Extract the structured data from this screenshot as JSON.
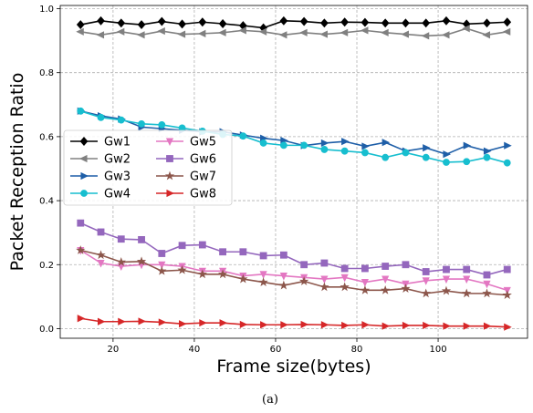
{
  "chart_data": {
    "type": "line",
    "caption": "(a)",
    "xlabel": "Frame size(bytes)",
    "ylabel": "Packet Reception Ratio",
    "xlim": [
      7,
      122
    ],
    "ylim": [
      -0.03,
      1.01
    ],
    "x_ticks": [
      20,
      40,
      60,
      80,
      100
    ],
    "y_ticks": [
      0.0,
      0.2,
      0.4,
      0.6,
      0.8,
      1.0
    ],
    "x_tick_labels": [
      "20",
      "40",
      "60",
      "80",
      "100"
    ],
    "y_tick_labels": [
      "0.0",
      "0.2",
      "0.4",
      "0.6",
      "0.8",
      "1.0"
    ],
    "grid": true,
    "legend_position": "center-left",
    "legend_columns": 2,
    "x": [
      12,
      17,
      22,
      27,
      32,
      37,
      42,
      47,
      52,
      57,
      62,
      67,
      72,
      77,
      82,
      87,
      92,
      97,
      102,
      107,
      112,
      117
    ],
    "series": [
      {
        "name": "Gw1",
        "color": "#000000",
        "marker": "diamond",
        "values": [
          0.95,
          0.962,
          0.955,
          0.95,
          0.96,
          0.952,
          0.958,
          0.953,
          0.947,
          0.94,
          0.962,
          0.96,
          0.955,
          0.958,
          0.957,
          0.955,
          0.955,
          0.955,
          0.962,
          0.952,
          0.955,
          0.958
        ]
      },
      {
        "name": "Gw2",
        "color": "#808080",
        "marker": "triangle-left",
        "values": [
          0.928,
          0.918,
          0.928,
          0.918,
          0.93,
          0.92,
          0.922,
          0.925,
          0.932,
          0.928,
          0.918,
          0.925,
          0.92,
          0.925,
          0.932,
          0.925,
          0.92,
          0.915,
          0.918,
          0.938,
          0.918,
          0.928
        ]
      },
      {
        "name": "Gw3",
        "color": "#1f5fa8",
        "marker": "triangle-right",
        "values": [
          0.68,
          0.665,
          0.655,
          0.63,
          0.625,
          0.62,
          0.615,
          0.615,
          0.605,
          0.595,
          0.588,
          0.572,
          0.58,
          0.585,
          0.57,
          0.582,
          0.555,
          0.565,
          0.545,
          0.572,
          0.555,
          0.572
        ]
      },
      {
        "name": "Gw4",
        "color": "#17becf",
        "marker": "circle",
        "values": [
          0.68,
          0.66,
          0.652,
          0.64,
          0.637,
          0.627,
          0.617,
          0.607,
          0.602,
          0.58,
          0.573,
          0.573,
          0.56,
          0.555,
          0.55,
          0.535,
          0.55,
          0.535,
          0.52,
          0.522,
          0.535,
          0.518
        ]
      },
      {
        "name": "Gw5",
        "color": "#e377c2",
        "marker": "triangle-down",
        "values": [
          0.245,
          0.205,
          0.195,
          0.2,
          0.2,
          0.195,
          0.18,
          0.18,
          0.165,
          0.17,
          0.165,
          0.16,
          0.155,
          0.16,
          0.145,
          0.155,
          0.14,
          0.15,
          0.155,
          0.155,
          0.14,
          0.12
        ]
      },
      {
        "name": "Gw6",
        "color": "#9467bd",
        "marker": "square",
        "values": [
          0.33,
          0.302,
          0.28,
          0.278,
          0.235,
          0.26,
          0.262,
          0.24,
          0.24,
          0.228,
          0.23,
          0.2,
          0.205,
          0.188,
          0.188,
          0.195,
          0.2,
          0.178,
          0.185,
          0.185,
          0.168,
          0.185
        ]
      },
      {
        "name": "Gw7",
        "color": "#8c564b",
        "marker": "star",
        "values": [
          0.245,
          0.23,
          0.208,
          0.21,
          0.18,
          0.183,
          0.17,
          0.17,
          0.155,
          0.145,
          0.135,
          0.148,
          0.13,
          0.13,
          0.12,
          0.12,
          0.125,
          0.11,
          0.118,
          0.11,
          0.11,
          0.105
        ]
      },
      {
        "name": "Gw8",
        "color": "#d62728",
        "marker": "triangle-right",
        "values": [
          0.032,
          0.022,
          0.022,
          0.023,
          0.02,
          0.015,
          0.018,
          0.018,
          0.013,
          0.012,
          0.012,
          0.013,
          0.012,
          0.01,
          0.012,
          0.008,
          0.01,
          0.01,
          0.008,
          0.008,
          0.008,
          0.005
        ]
      }
    ]
  }
}
